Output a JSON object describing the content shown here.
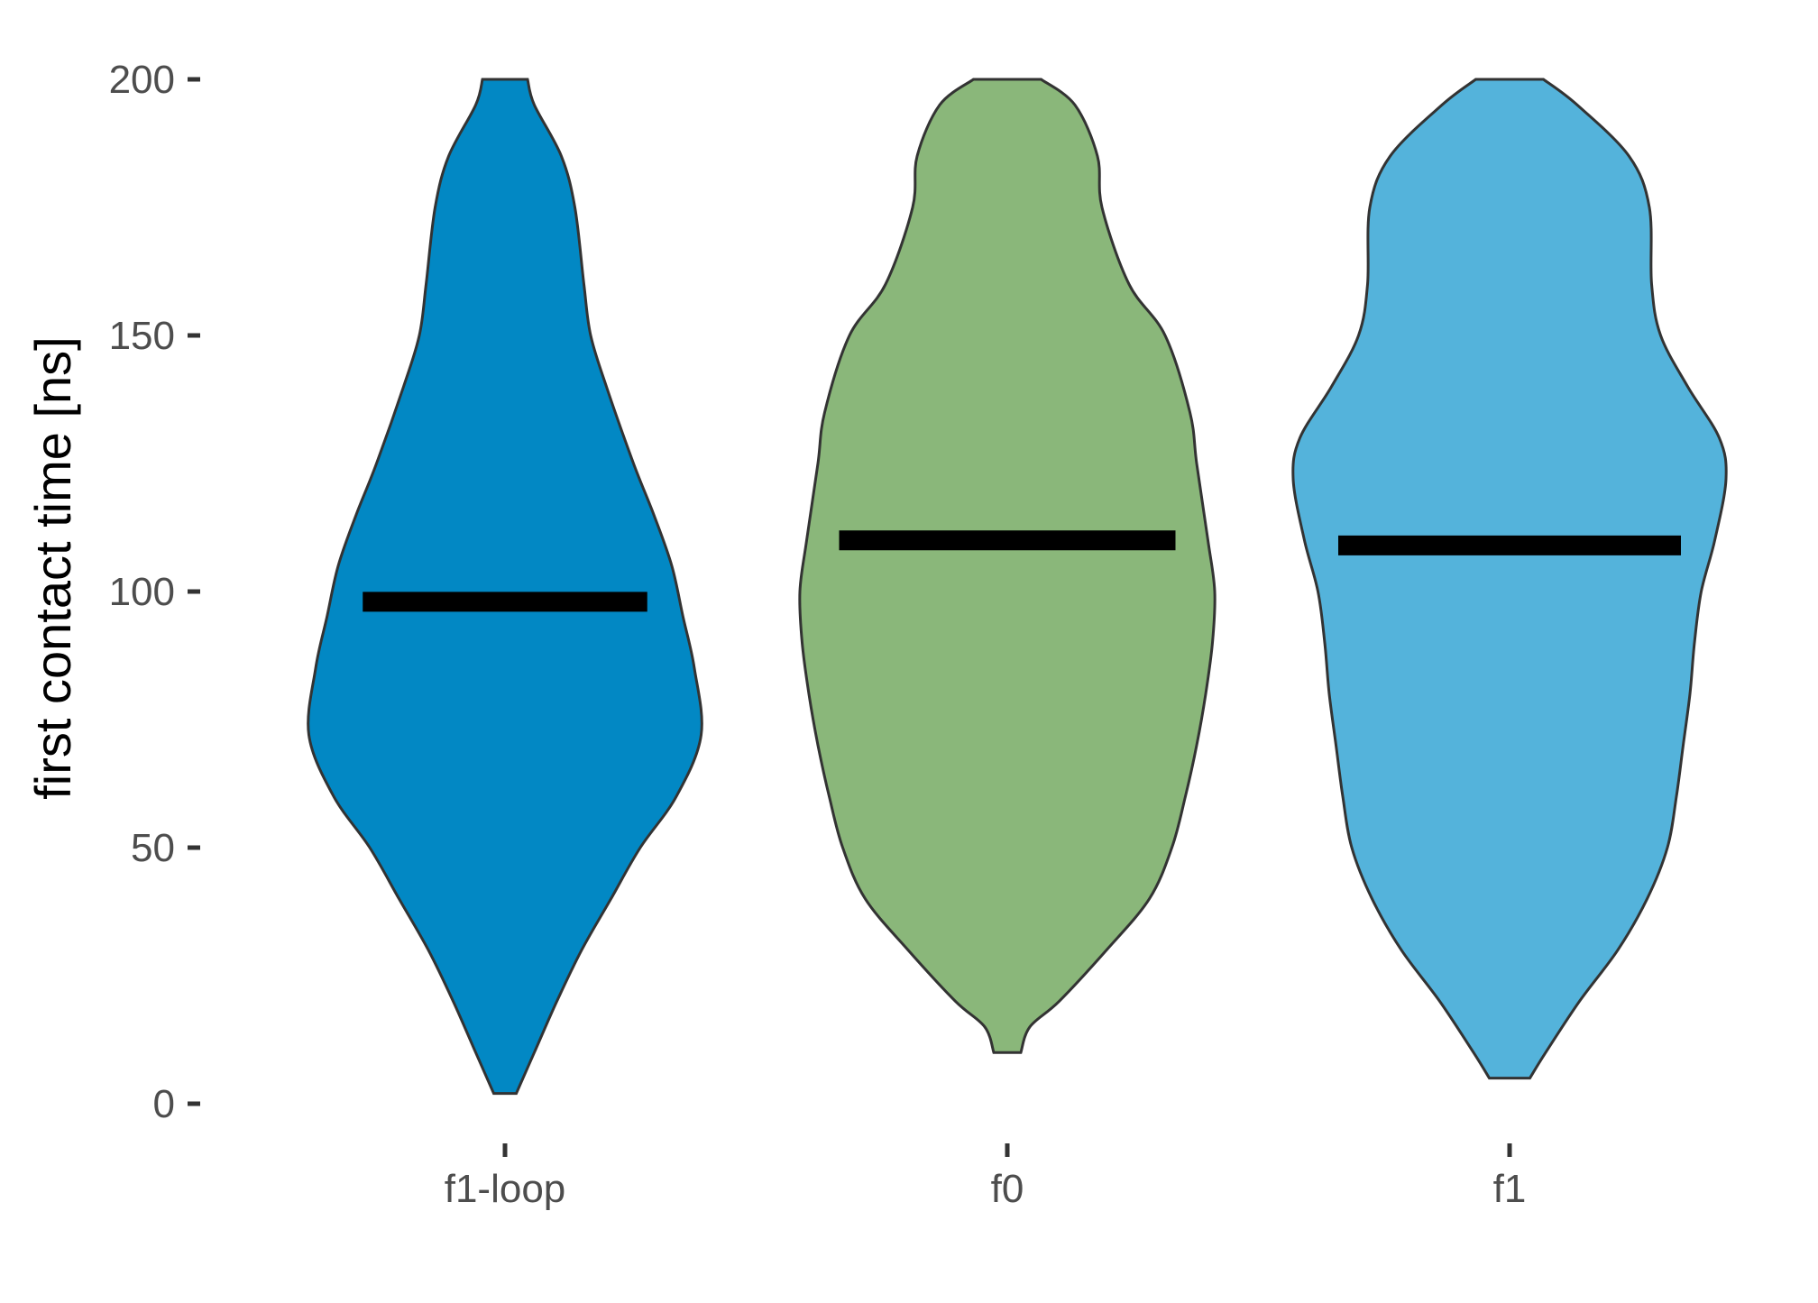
{
  "chart_data": {
    "type": "violin",
    "ylabel": "first contact time [ns]",
    "xlabel": "",
    "title": "",
    "ylim": [
      0,
      200
    ],
    "yticks": [
      0,
      50,
      100,
      150,
      200
    ],
    "categories": [
      "f1-loop",
      "f0",
      "f1"
    ],
    "grid": false,
    "legend": "none",
    "series": [
      {
        "category": "f1-loop",
        "color": "#0288c4",
        "median": 98,
        "range": [
          2,
          200
        ],
        "profile": [
          [
            2,
            0.05
          ],
          [
            10,
            0.13
          ],
          [
            20,
            0.23
          ],
          [
            30,
            0.34
          ],
          [
            40,
            0.47
          ],
          [
            50,
            0.6
          ],
          [
            60,
            0.76
          ],
          [
            72,
            0.87
          ],
          [
            85,
            0.84
          ],
          [
            95,
            0.79
          ],
          [
            105,
            0.74
          ],
          [
            115,
            0.66
          ],
          [
            125,
            0.57
          ],
          [
            140,
            0.45
          ],
          [
            150,
            0.38
          ],
          [
            160,
            0.35
          ],
          [
            175,
            0.31
          ],
          [
            185,
            0.25
          ],
          [
            195,
            0.13
          ],
          [
            200,
            0.1
          ]
        ]
      },
      {
        "category": "f0",
        "color": "#8ab77a",
        "median": 110,
        "range": [
          10,
          200
        ],
        "profile": [
          [
            10,
            0.06
          ],
          [
            15,
            0.1
          ],
          [
            20,
            0.23
          ],
          [
            30,
            0.44
          ],
          [
            40,
            0.63
          ],
          [
            50,
            0.73
          ],
          [
            60,
            0.79
          ],
          [
            70,
            0.84
          ],
          [
            80,
            0.88
          ],
          [
            90,
            0.91
          ],
          [
            100,
            0.92
          ],
          [
            110,
            0.89
          ],
          [
            125,
            0.84
          ],
          [
            135,
            0.81
          ],
          [
            150,
            0.7
          ],
          [
            160,
            0.54
          ],
          [
            175,
            0.42
          ],
          [
            185,
            0.4
          ],
          [
            195,
            0.3
          ],
          [
            200,
            0.15
          ]
        ]
      },
      {
        "category": "f1",
        "color": "#54b3db",
        "median": 109,
        "range": [
          5,
          200
        ],
        "profile": [
          [
            5,
            0.09
          ],
          [
            10,
            0.16
          ],
          [
            20,
            0.31
          ],
          [
            30,
            0.48
          ],
          [
            40,
            0.61
          ],
          [
            50,
            0.7
          ],
          [
            60,
            0.74
          ],
          [
            70,
            0.77
          ],
          [
            80,
            0.8
          ],
          [
            90,
            0.82
          ],
          [
            100,
            0.85
          ],
          [
            110,
            0.91
          ],
          [
            122,
            0.96
          ],
          [
            130,
            0.93
          ],
          [
            140,
            0.79
          ],
          [
            150,
            0.67
          ],
          [
            160,
            0.63
          ],
          [
            175,
            0.62
          ],
          [
            185,
            0.53
          ],
          [
            195,
            0.3
          ],
          [
            200,
            0.15
          ]
        ]
      }
    ]
  }
}
